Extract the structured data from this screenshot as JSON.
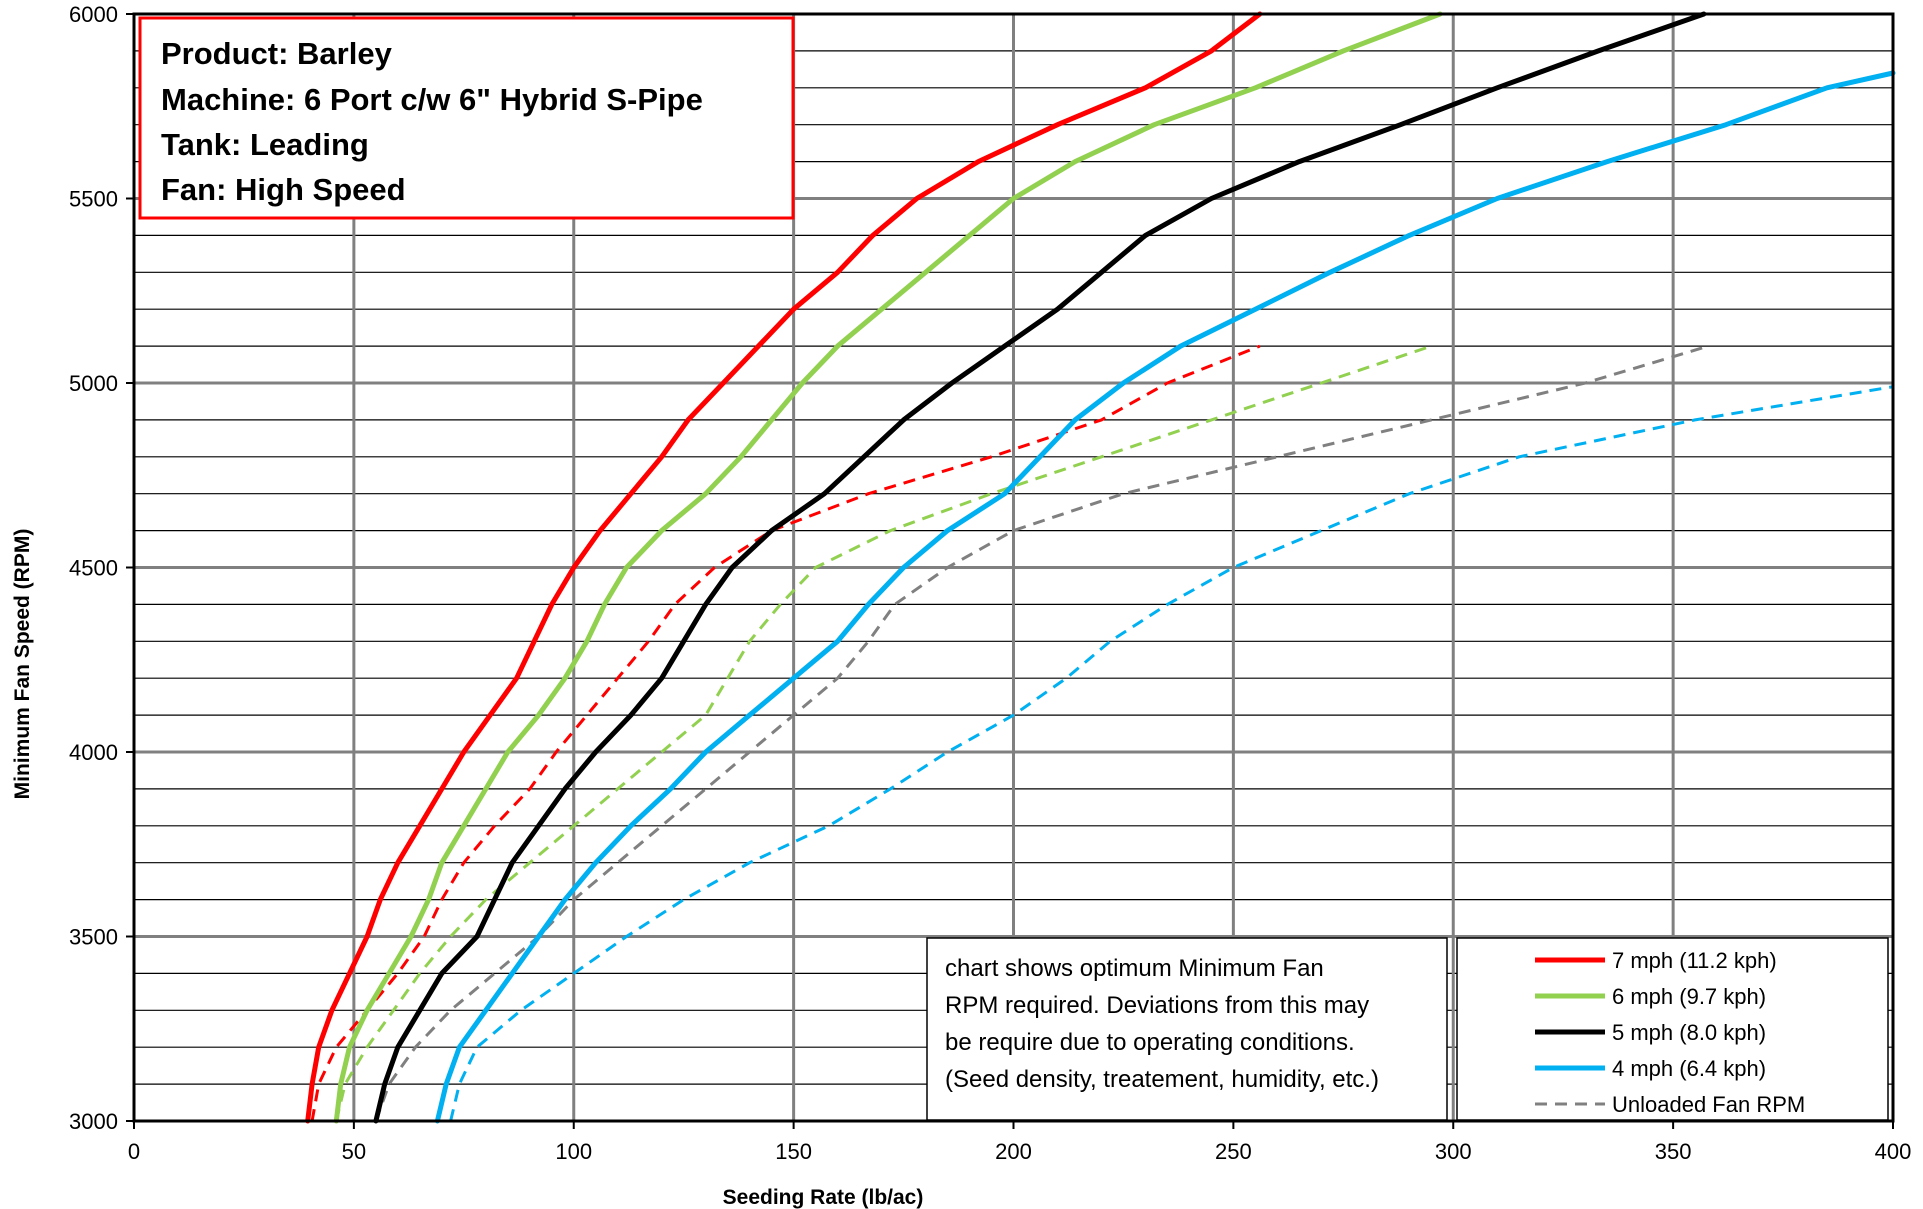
{
  "chart_data": {
    "type": "line",
    "info_box": {
      "product": "Product:  Barley",
      "machine": "Machine: 6 Port c/w 6\" Hybrid S-Pipe",
      "tank": "Tank:  Leading",
      "fan": "Fan:  High Speed"
    },
    "note": [
      "chart shows optimum Minimum Fan",
      "RPM required.  Deviations from this may",
      "be require due to operating conditions.",
      "(Seed density, treatement, humidity, etc.)"
    ],
    "xlabel": "Seeding Rate (lb/ac)",
    "ylabel": "Minimum Fan Speed (RPM)",
    "xlim": [
      0,
      400
    ],
    "ylim": [
      3000,
      6000
    ],
    "x_ticks": [
      0,
      50,
      100,
      150,
      200,
      250,
      300,
      350,
      400
    ],
    "y_ticks": [
      3000,
      3500,
      4000,
      4500,
      5000,
      5500,
      6000
    ],
    "grid": true,
    "legend_position": "bottom-right",
    "series": [
      {
        "name": "7 mph (11.2 kph)",
        "color": "#ff0000",
        "dashed": false,
        "points": [
          [
            39.5,
            3000
          ],
          [
            40.5,
            3100
          ],
          [
            42,
            3200
          ],
          [
            45,
            3300
          ],
          [
            49,
            3400
          ],
          [
            53,
            3500
          ],
          [
            56,
            3600
          ],
          [
            60,
            3700
          ],
          [
            65,
            3800
          ],
          [
            70,
            3900
          ],
          [
            75,
            4000
          ],
          [
            81,
            4100
          ],
          [
            87,
            4200
          ],
          [
            91,
            4300
          ],
          [
            95,
            4400
          ],
          [
            100,
            4500
          ],
          [
            106,
            4600
          ],
          [
            113,
            4700
          ],
          [
            120,
            4800
          ],
          [
            126,
            4900
          ],
          [
            134,
            5000
          ],
          [
            142,
            5100
          ],
          [
            150,
            5200
          ],
          [
            160,
            5300
          ],
          [
            168,
            5400
          ],
          [
            178,
            5500
          ],
          [
            192,
            5600
          ],
          [
            210,
            5700
          ],
          [
            230,
            5800
          ],
          [
            245,
            5900
          ],
          [
            256,
            6000
          ]
        ]
      },
      {
        "name": "6 mph (9.7 kph)",
        "color": "#92d050",
        "dashed": false,
        "points": [
          [
            46,
            3000
          ],
          [
            47,
            3100
          ],
          [
            49,
            3200
          ],
          [
            53,
            3300
          ],
          [
            58,
            3400
          ],
          [
            63,
            3500
          ],
          [
            67,
            3600
          ],
          [
            70,
            3700
          ],
          [
            75,
            3800
          ],
          [
            80,
            3900
          ],
          [
            85,
            4000
          ],
          [
            92,
            4100
          ],
          [
            98,
            4200
          ],
          [
            103,
            4300
          ],
          [
            107,
            4400
          ],
          [
            112,
            4500
          ],
          [
            120,
            4600
          ],
          [
            130,
            4700
          ],
          [
            138,
            4800
          ],
          [
            145,
            4900
          ],
          [
            152,
            5000
          ],
          [
            160,
            5100
          ],
          [
            170,
            5200
          ],
          [
            180,
            5300
          ],
          [
            190,
            5400
          ],
          [
            200,
            5500
          ],
          [
            214,
            5600
          ],
          [
            232,
            5700
          ],
          [
            255,
            5800
          ],
          [
            275,
            5900
          ],
          [
            297,
            6000
          ]
        ]
      },
      {
        "name": "5 mph (8.0 kph)",
        "color": "#000000",
        "dashed": false,
        "points": [
          [
            55,
            3000
          ],
          [
            57,
            3100
          ],
          [
            60,
            3200
          ],
          [
            65,
            3300
          ],
          [
            70,
            3400
          ],
          [
            78,
            3500
          ],
          [
            82,
            3600
          ],
          [
            86,
            3700
          ],
          [
            92,
            3800
          ],
          [
            98,
            3900
          ],
          [
            105,
            4000
          ],
          [
            113,
            4100
          ],
          [
            120,
            4200
          ],
          [
            125,
            4300
          ],
          [
            130,
            4400
          ],
          [
            136,
            4500
          ],
          [
            145,
            4600
          ],
          [
            157,
            4700
          ],
          [
            166,
            4800
          ],
          [
            175,
            4900
          ],
          [
            186,
            5000
          ],
          [
            198,
            5100
          ],
          [
            210,
            5200
          ],
          [
            220,
            5300
          ],
          [
            230,
            5400
          ],
          [
            245,
            5500
          ],
          [
            265,
            5600
          ],
          [
            288,
            5700
          ],
          [
            310,
            5800
          ],
          [
            333,
            5900
          ],
          [
            357,
            6000
          ]
        ]
      },
      {
        "name": "4 mph (6.4 kph)",
        "color": "#00b0f0",
        "dashed": false,
        "points": [
          [
            69,
            3000
          ],
          [
            71,
            3100
          ],
          [
            74,
            3200
          ],
          [
            80,
            3300
          ],
          [
            86,
            3400
          ],
          [
            92,
            3500
          ],
          [
            98,
            3600
          ],
          [
            105,
            3700
          ],
          [
            113,
            3800
          ],
          [
            122,
            3900
          ],
          [
            130,
            4000
          ],
          [
            140,
            4100
          ],
          [
            150,
            4200
          ],
          [
            160,
            4300
          ],
          [
            167,
            4400
          ],
          [
            175,
            4500
          ],
          [
            185,
            4600
          ],
          [
            198,
            4700
          ],
          [
            206,
            4800
          ],
          [
            214,
            4900
          ],
          [
            225,
            5000
          ],
          [
            238,
            5100
          ],
          [
            255,
            5200
          ],
          [
            272,
            5300
          ],
          [
            290,
            5400
          ],
          [
            310,
            5500
          ],
          [
            335,
            5600
          ],
          [
            362,
            5700
          ],
          [
            385,
            5800
          ],
          [
            400,
            5840
          ]
        ]
      },
      {
        "name": "Unloaded Fan RPM",
        "color": "#808080",
        "dashed": true,
        "points": [
          [
            55,
            3000
          ],
          [
            58,
            3100
          ],
          [
            64,
            3200
          ],
          [
            72,
            3300
          ],
          [
            82,
            3400
          ],
          [
            92,
            3500
          ],
          [
            100,
            3600
          ],
          [
            110,
            3700
          ],
          [
            120,
            3800
          ],
          [
            130,
            3900
          ],
          [
            140,
            4000
          ],
          [
            150,
            4100
          ],
          [
            160,
            4200
          ],
          [
            167,
            4300
          ],
          [
            173,
            4400
          ],
          [
            185,
            4500
          ],
          [
            200,
            4600
          ],
          [
            225,
            4700
          ],
          [
            260,
            4800
          ],
          [
            295,
            4900
          ],
          [
            330,
            5000
          ],
          [
            358,
            5100
          ]
        ]
      },
      {
        "name": "",
        "color": "#ff0000",
        "dashed": true,
        "points": [
          [
            40.5,
            3000
          ],
          [
            42,
            3100
          ],
          [
            46,
            3200
          ],
          [
            53,
            3300
          ],
          [
            60,
            3400
          ],
          [
            66,
            3500
          ],
          [
            70,
            3600
          ],
          [
            75,
            3700
          ],
          [
            82,
            3800
          ],
          [
            90,
            3900
          ],
          [
            96,
            4000
          ],
          [
            103,
            4100
          ],
          [
            110,
            4200
          ],
          [
            117,
            4300
          ],
          [
            123,
            4400
          ],
          [
            132,
            4500
          ],
          [
            145,
            4600
          ],
          [
            167,
            4700
          ],
          [
            195,
            4800
          ],
          [
            220,
            4900
          ],
          [
            235,
            5000
          ],
          [
            256,
            5100
          ]
        ]
      },
      {
        "name": "",
        "color": "#92d050",
        "dashed": true,
        "points": [
          [
            46,
            3000
          ],
          [
            48,
            3100
          ],
          [
            53,
            3200
          ],
          [
            59,
            3300
          ],
          [
            65,
            3400
          ],
          [
            72,
            3500
          ],
          [
            80,
            3600
          ],
          [
            90,
            3700
          ],
          [
            100,
            3800
          ],
          [
            110,
            3900
          ],
          [
            120,
            4000
          ],
          [
            130,
            4100
          ],
          [
            135,
            4200
          ],
          [
            140,
            4300
          ],
          [
            147,
            4400
          ],
          [
            155,
            4500
          ],
          [
            172,
            4600
          ],
          [
            195,
            4700
          ],
          [
            220,
            4800
          ],
          [
            245,
            4900
          ],
          [
            270,
            5000
          ],
          [
            295,
            5100
          ]
        ]
      },
      {
        "name": "",
        "color": "#00b0f0",
        "dashed": true,
        "points": [
          [
            72,
            3000
          ],
          [
            74,
            3100
          ],
          [
            78,
            3200
          ],
          [
            88,
            3300
          ],
          [
            100,
            3400
          ],
          [
            112,
            3500
          ],
          [
            125,
            3600
          ],
          [
            140,
            3700
          ],
          [
            158,
            3800
          ],
          [
            172,
            3900
          ],
          [
            185,
            4000
          ],
          [
            200,
            4100
          ],
          [
            212,
            4200
          ],
          [
            222,
            4300
          ],
          [
            235,
            4400
          ],
          [
            250,
            4500
          ],
          [
            270,
            4600
          ],
          [
            290,
            4700
          ],
          [
            315,
            4800
          ],
          [
            355,
            4900
          ],
          [
            400,
            4990
          ]
        ]
      }
    ]
  }
}
